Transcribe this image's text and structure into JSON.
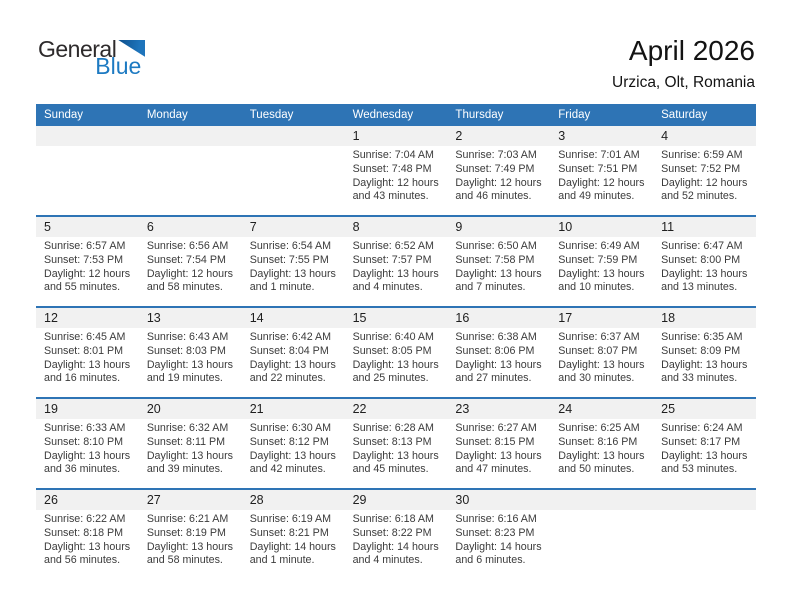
{
  "logo": {
    "general": "General",
    "blue": "Blue"
  },
  "header": {
    "title": "April 2026",
    "subtitle": "Urzica, Olt, Romania"
  },
  "colors": {
    "header_blue": "#2E74B5",
    "band_gray": "#F1F1F1",
    "logo_blue": "#1D7AC2",
    "logo_triangle_blue": "#1E74BB"
  },
  "calendar": {
    "day_headers": [
      "Sunday",
      "Monday",
      "Tuesday",
      "Wednesday",
      "Thursday",
      "Friday",
      "Saturday"
    ],
    "weeks": [
      {
        "days": [
          null,
          null,
          null,
          {
            "num": "1",
            "lines": [
              "Sunrise: 7:04 AM",
              "Sunset: 7:48 PM",
              "Daylight: 12 hours",
              "and 43 minutes."
            ]
          },
          {
            "num": "2",
            "lines": [
              "Sunrise: 7:03 AM",
              "Sunset: 7:49 PM",
              "Daylight: 12 hours",
              "and 46 minutes."
            ]
          },
          {
            "num": "3",
            "lines": [
              "Sunrise: 7:01 AM",
              "Sunset: 7:51 PM",
              "Daylight: 12 hours",
              "and 49 minutes."
            ]
          },
          {
            "num": "4",
            "lines": [
              "Sunrise: 6:59 AM",
              "Sunset: 7:52 PM",
              "Daylight: 12 hours",
              "and 52 minutes."
            ]
          }
        ]
      },
      {
        "days": [
          {
            "num": "5",
            "lines": [
              "Sunrise: 6:57 AM",
              "Sunset: 7:53 PM",
              "Daylight: 12 hours",
              "and 55 minutes."
            ]
          },
          {
            "num": "6",
            "lines": [
              "Sunrise: 6:56 AM",
              "Sunset: 7:54 PM",
              "Daylight: 12 hours",
              "and 58 minutes."
            ]
          },
          {
            "num": "7",
            "lines": [
              "Sunrise: 6:54 AM",
              "Sunset: 7:55 PM",
              "Daylight: 13 hours",
              "and 1 minute."
            ]
          },
          {
            "num": "8",
            "lines": [
              "Sunrise: 6:52 AM",
              "Sunset: 7:57 PM",
              "Daylight: 13 hours",
              "and 4 minutes."
            ]
          },
          {
            "num": "9",
            "lines": [
              "Sunrise: 6:50 AM",
              "Sunset: 7:58 PM",
              "Daylight: 13 hours",
              "and 7 minutes."
            ]
          },
          {
            "num": "10",
            "lines": [
              "Sunrise: 6:49 AM",
              "Sunset: 7:59 PM",
              "Daylight: 13 hours",
              "and 10 minutes."
            ]
          },
          {
            "num": "11",
            "lines": [
              "Sunrise: 6:47 AM",
              "Sunset: 8:00 PM",
              "Daylight: 13 hours",
              "and 13 minutes."
            ]
          }
        ]
      },
      {
        "days": [
          {
            "num": "12",
            "lines": [
              "Sunrise: 6:45 AM",
              "Sunset: 8:01 PM",
              "Daylight: 13 hours",
              "and 16 minutes."
            ]
          },
          {
            "num": "13",
            "lines": [
              "Sunrise: 6:43 AM",
              "Sunset: 8:03 PM",
              "Daylight: 13 hours",
              "and 19 minutes."
            ]
          },
          {
            "num": "14",
            "lines": [
              "Sunrise: 6:42 AM",
              "Sunset: 8:04 PM",
              "Daylight: 13 hours",
              "and 22 minutes."
            ]
          },
          {
            "num": "15",
            "lines": [
              "Sunrise: 6:40 AM",
              "Sunset: 8:05 PM",
              "Daylight: 13 hours",
              "and 25 minutes."
            ]
          },
          {
            "num": "16",
            "lines": [
              "Sunrise: 6:38 AM",
              "Sunset: 8:06 PM",
              "Daylight: 13 hours",
              "and 27 minutes."
            ]
          },
          {
            "num": "17",
            "lines": [
              "Sunrise: 6:37 AM",
              "Sunset: 8:07 PM",
              "Daylight: 13 hours",
              "and 30 minutes."
            ]
          },
          {
            "num": "18",
            "lines": [
              "Sunrise: 6:35 AM",
              "Sunset: 8:09 PM",
              "Daylight: 13 hours",
              "and 33 minutes."
            ]
          }
        ]
      },
      {
        "days": [
          {
            "num": "19",
            "lines": [
              "Sunrise: 6:33 AM",
              "Sunset: 8:10 PM",
              "Daylight: 13 hours",
              "and 36 minutes."
            ]
          },
          {
            "num": "20",
            "lines": [
              "Sunrise: 6:32 AM",
              "Sunset: 8:11 PM",
              "Daylight: 13 hours",
              "and 39 minutes."
            ]
          },
          {
            "num": "21",
            "lines": [
              "Sunrise: 6:30 AM",
              "Sunset: 8:12 PM",
              "Daylight: 13 hours",
              "and 42 minutes."
            ]
          },
          {
            "num": "22",
            "lines": [
              "Sunrise: 6:28 AM",
              "Sunset: 8:13 PM",
              "Daylight: 13 hours",
              "and 45 minutes."
            ]
          },
          {
            "num": "23",
            "lines": [
              "Sunrise: 6:27 AM",
              "Sunset: 8:15 PM",
              "Daylight: 13 hours",
              "and 47 minutes."
            ]
          },
          {
            "num": "24",
            "lines": [
              "Sunrise: 6:25 AM",
              "Sunset: 8:16 PM",
              "Daylight: 13 hours",
              "and 50 minutes."
            ]
          },
          {
            "num": "25",
            "lines": [
              "Sunrise: 6:24 AM",
              "Sunset: 8:17 PM",
              "Daylight: 13 hours",
              "and 53 minutes."
            ]
          }
        ]
      },
      {
        "days": [
          {
            "num": "26",
            "lines": [
              "Sunrise: 6:22 AM",
              "Sunset: 8:18 PM",
              "Daylight: 13 hours",
              "and 56 minutes."
            ]
          },
          {
            "num": "27",
            "lines": [
              "Sunrise: 6:21 AM",
              "Sunset: 8:19 PM",
              "Daylight: 13 hours",
              "and 58 minutes."
            ]
          },
          {
            "num": "28",
            "lines": [
              "Sunrise: 6:19 AM",
              "Sunset: 8:21 PM",
              "Daylight: 14 hours",
              "and 1 minute."
            ]
          },
          {
            "num": "29",
            "lines": [
              "Sunrise: 6:18 AM",
              "Sunset: 8:22 PM",
              "Daylight: 14 hours",
              "and 4 minutes."
            ]
          },
          {
            "num": "30",
            "lines": [
              "Sunrise: 6:16 AM",
              "Sunset: 8:23 PM",
              "Daylight: 14 hours",
              "and 6 minutes."
            ]
          },
          null,
          null
        ]
      }
    ]
  }
}
